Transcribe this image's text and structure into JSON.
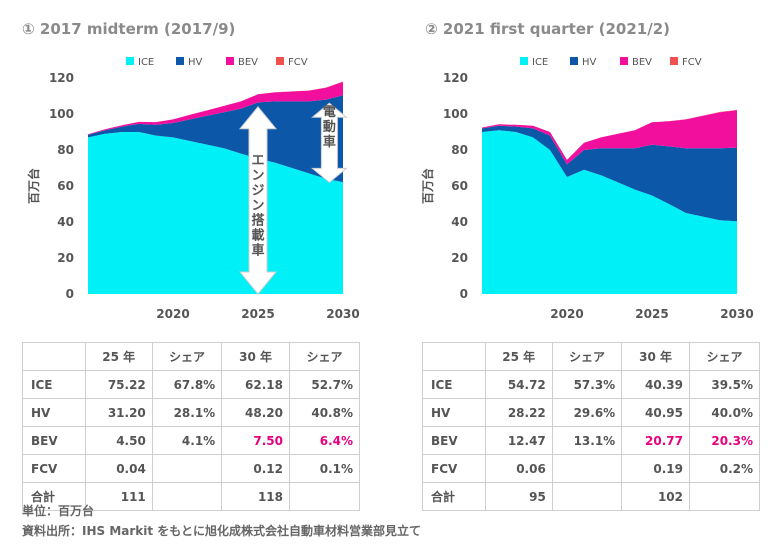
{
  "colors": {
    "ICE": "#00f0f7",
    "HV": "#0d57a9",
    "BEV": "#f20f9e",
    "FCV": "#f05050",
    "highlight": "#e4007f"
  },
  "charts": [
    {
      "title": "① 2017 midterm (2017/9)",
      "annotation_large": "エンジン搭載車",
      "annotation_small": "電動車"
    },
    {
      "title": "② 2021 first quarter (2021/2)"
    }
  ],
  "chart_data": [
    {
      "type": "area",
      "stacked": true,
      "title": "① 2017 midterm (2017/9)",
      "ylabel": "百万台",
      "ylim": [
        0,
        120
      ],
      "yticks": [
        "0",
        "20",
        "40",
        "60",
        "80",
        "100",
        "120"
      ],
      "xlim": [
        2015,
        2030
      ],
      "xticks": [
        "2020",
        "2025",
        "2030"
      ],
      "legend": [
        "ICE",
        "HV",
        "BEV",
        "FCV"
      ],
      "legend_position": "top",
      "x": [
        2015,
        2016,
        2017,
        2018,
        2019,
        2020,
        2021,
        2022,
        2023,
        2024,
        2025,
        2026,
        2027,
        2028,
        2029,
        2030
      ],
      "series": [
        {
          "name": "ICE",
          "values": [
            87,
            89,
            90,
            90,
            88,
            87,
            85,
            83,
            81,
            78,
            75.22,
            73,
            70,
            67,
            64,
            62.18
          ]
        },
        {
          "name": "HV",
          "values": [
            1.5,
            2,
            3,
            4.5,
            6,
            8,
            12,
            16,
            20,
            25,
            31.2,
            34,
            37,
            40,
            44,
            48.2
          ]
        },
        {
          "name": "BEV",
          "values": [
            0.3,
            0.5,
            0.8,
            1.1,
            1.5,
            2,
            2.6,
            3,
            3.5,
            4,
            4.5,
            5,
            5.5,
            6,
            6.6,
            7.5
          ]
        },
        {
          "name": "FCV",
          "values": [
            0,
            0,
            0,
            0,
            0,
            0,
            0.01,
            0.01,
            0.02,
            0.03,
            0.04,
            0.05,
            0.07,
            0.08,
            0.1,
            0.12
          ]
        }
      ]
    },
    {
      "type": "area",
      "stacked": true,
      "title": "② 2021 first quarter (2021/2)",
      "ylabel": "百万台",
      "ylim": [
        0,
        120
      ],
      "yticks": [
        "0",
        "20",
        "40",
        "60",
        "80",
        "100",
        "120"
      ],
      "xlim": [
        2015,
        2030
      ],
      "xticks": [
        "2020",
        "2025",
        "2030"
      ],
      "legend": [
        "ICE",
        "HV",
        "BEV",
        "FCV"
      ],
      "legend_position": "top",
      "x": [
        2015,
        2016,
        2017,
        2018,
        2019,
        2020,
        2021,
        2022,
        2023,
        2024,
        2025,
        2026,
        2027,
        2028,
        2029,
        2030
      ],
      "series": [
        {
          "name": "ICE",
          "values": [
            90,
            91,
            90,
            87,
            80,
            65,
            69,
            66,
            62,
            58,
            54.72,
            50,
            45,
            43,
            41,
            40.39
          ]
        },
        {
          "name": "HV",
          "values": [
            2,
            2.5,
            3,
            5,
            8,
            7,
            11,
            15,
            19,
            23,
            28.22,
            32,
            36,
            38,
            40,
            40.95
          ]
        },
        {
          "name": "BEV",
          "values": [
            0.5,
            0.8,
            1,
            1.5,
            2,
            2.5,
            4,
            6,
            8,
            10,
            12.47,
            14,
            16,
            18,
            20,
            20.77
          ]
        },
        {
          "name": "FCV",
          "values": [
            0,
            0,
            0,
            0,
            0,
            0,
            0.01,
            0.02,
            0.03,
            0.04,
            0.06,
            0.08,
            0.1,
            0.13,
            0.16,
            0.19
          ]
        }
      ]
    }
  ],
  "tables": [
    {
      "headers": [
        "",
        "25 年",
        "シェア",
        "30 年",
        "シェア"
      ],
      "rows": [
        [
          "ICE",
          "75.22",
          "67.8%",
          "62.18",
          "52.7%"
        ],
        [
          "HV",
          "31.20",
          "28.1%",
          "48.20",
          "40.8%"
        ],
        [
          "BEV",
          "4.50",
          "4.1%",
          "7.50",
          "6.4%"
        ],
        [
          "FCV",
          "0.04",
          "",
          "0.12",
          "0.1%"
        ],
        [
          "合計",
          "111",
          "",
          "118",
          ""
        ]
      ]
    },
    {
      "headers": [
        "",
        "25 年",
        "シェア",
        "30 年",
        "シェア"
      ],
      "rows": [
        [
          "ICE",
          "54.72",
          "57.3%",
          "40.39",
          "39.5%"
        ],
        [
          "HV",
          "28.22",
          "29.6%",
          "40.95",
          "40.0%"
        ],
        [
          "BEV",
          "12.47",
          "13.1%",
          "20.77",
          "20.3%"
        ],
        [
          "FCV",
          "0.06",
          "",
          "0.19",
          "0.2%"
        ],
        [
          "合計",
          "95",
          "",
          "102",
          ""
        ]
      ]
    }
  ],
  "footer": {
    "unit": "単位：百万台",
    "source": "資料出所：IHS Markit をもとに旭化成株式会社自動車材料営業部見立て"
  }
}
